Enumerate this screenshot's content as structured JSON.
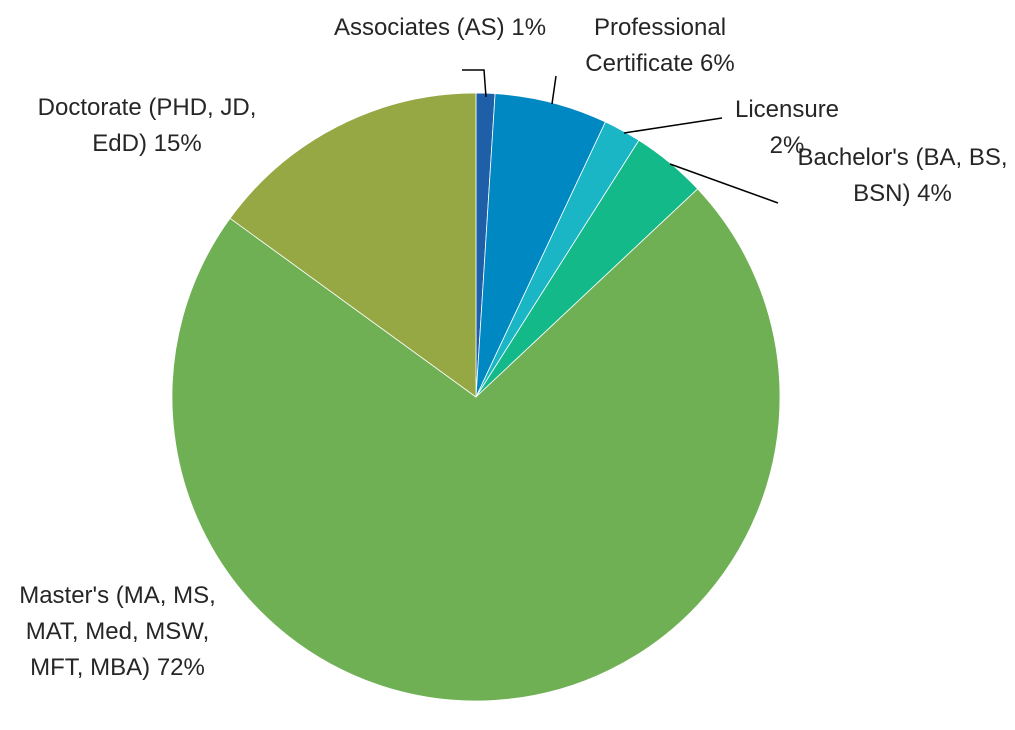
{
  "chart_data": {
    "type": "pie",
    "categories": [
      "Associates (AS)",
      "Professional Certificate",
      "Licensure",
      "Bachelor's (BA, BS, BSN)",
      "Master's (MA, MS, MAT, Med, MSW, MFT, MBA)",
      "Doctorate (PHD, JD, EdD)"
    ],
    "values": [
      1,
      6,
      2,
      4,
      72,
      15
    ],
    "value_labels": [
      "1%",
      "6%",
      "2%",
      "4%",
      "72%",
      "15%"
    ],
    "colors": [
      "#1f5fa8",
      "#0088c2",
      "#1ab6c6",
      "#14b98a",
      "#70b055",
      "#95a843"
    ]
  }
}
